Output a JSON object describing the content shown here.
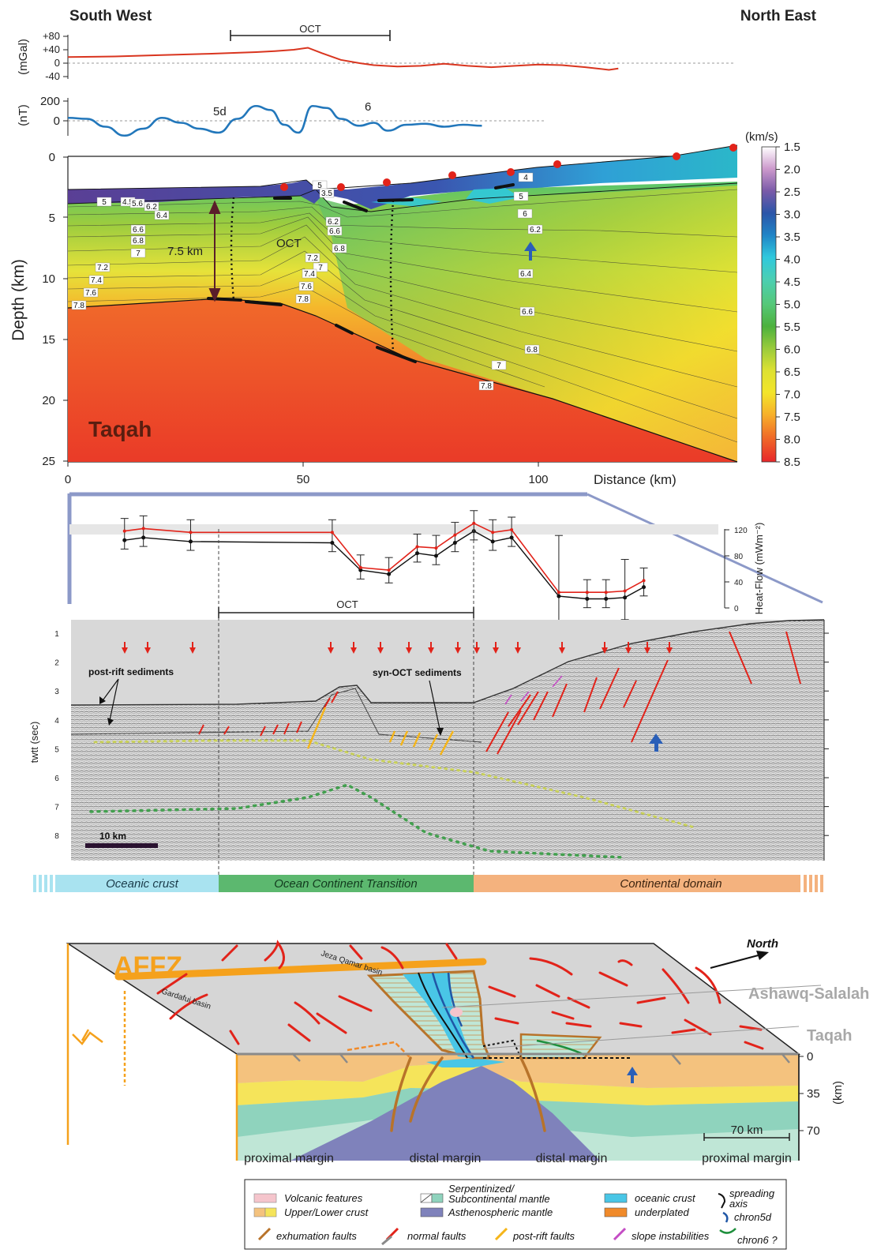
{
  "header": {
    "left": "South West",
    "right": "North East"
  },
  "gravity": {
    "unit": "(mGal)",
    "ticks": [
      "+80",
      "+40",
      "0",
      "-40"
    ],
    "oct_label": "OCT",
    "values": [
      [
        0,
        18
      ],
      [
        10,
        20
      ],
      [
        20,
        24
      ],
      [
        30,
        28
      ],
      [
        40,
        33
      ],
      [
        44,
        36
      ],
      [
        48,
        40
      ],
      [
        51,
        46
      ],
      [
        54,
        30
      ],
      [
        58,
        10
      ],
      [
        62,
        0
      ],
      [
        65,
        -6
      ],
      [
        70,
        -10
      ],
      [
        75,
        -8
      ],
      [
        80,
        -2
      ],
      [
        85,
        -8
      ],
      [
        90,
        -12
      ],
      [
        95,
        -8
      ],
      [
        100,
        -4
      ],
      [
        105,
        -6
      ],
      [
        110,
        -12
      ],
      [
        115,
        -20
      ],
      [
        117,
        -16
      ]
    ]
  },
  "magnetic": {
    "unit": "(nT)",
    "ticks": [
      "200",
      "0"
    ],
    "anomaly_labels": [
      "5d",
      "6"
    ],
    "values": [
      [
        0,
        30
      ],
      [
        4,
        20
      ],
      [
        8,
        -60
      ],
      [
        12,
        -150
      ],
      [
        16,
        -80
      ],
      [
        20,
        30
      ],
      [
        24,
        -20
      ],
      [
        28,
        -80
      ],
      [
        32,
        -120
      ],
      [
        36,
        20
      ],
      [
        40,
        150
      ],
      [
        43,
        110
      ],
      [
        46,
        -40
      ],
      [
        49,
        -120
      ],
      [
        52,
        150
      ],
      [
        55,
        130
      ],
      [
        58,
        20
      ],
      [
        62,
        -50
      ],
      [
        65,
        -20
      ],
      [
        68,
        -100
      ],
      [
        72,
        -40
      ],
      [
        76,
        -30
      ],
      [
        80,
        -60
      ],
      [
        84,
        -40
      ],
      [
        88,
        -50
      ]
    ]
  },
  "velocity_model": {
    "ylabel": "Depth (km)",
    "xlabel": "Distance (km)",
    "yticks": [
      "0",
      "5",
      "10",
      "15",
      "20",
      "25"
    ],
    "xticks": [
      "0",
      "50",
      "100"
    ],
    "ylim": [
      0,
      25
    ],
    "xlim": [
      0,
      143
    ],
    "name": "Taqah",
    "moho_annotation": "7.5 km",
    "oct_label": "OCT",
    "contour_labels": [
      "5",
      "4.5",
      "5.6",
      "6.2",
      "6.4",
      "6.6",
      "6.8",
      "7",
      "7.2",
      "7.4",
      "7.6",
      "7.8",
      "5",
      "3.5",
      "6.2",
      "6.6",
      "6.8",
      "7",
      "7.2",
      "7.4",
      "7.6",
      "7.8",
      "5",
      "6",
      "6.2",
      "6.4",
      "6.6",
      "6.8",
      "7",
      "7.8",
      "4"
    ]
  },
  "colorbar": {
    "unit": "(km/s)",
    "ticks": [
      "1.5",
      "2.0",
      "2.5",
      "3.0",
      "3.5",
      "4.0",
      "4.5",
      "5.0",
      "5.5",
      "6.0",
      "6.5",
      "7.0",
      "7.5",
      "8.0",
      "8.5"
    ],
    "colors": [
      "#ffffff",
      "#cc99cc",
      "#7a5aa8",
      "#2b55a8",
      "#1f84c6",
      "#2fc8dd",
      "#4bcfb3",
      "#55c878",
      "#4cb13d",
      "#7bc340",
      "#c8d63a",
      "#f3e52a",
      "#f7b02a",
      "#f06d28",
      "#e8262a"
    ]
  },
  "heat_flow": {
    "ylabel": "Heat-Flow (mWm⁻²)",
    "yticks": [
      "120",
      "80",
      "40",
      "0"
    ],
    "ylim": [
      0,
      140
    ],
    "red_values": [
      [
        12,
        118
      ],
      [
        16,
        122
      ],
      [
        26,
        116
      ],
      [
        56,
        116
      ],
      [
        62,
        62
      ],
      [
        68,
        58
      ],
      [
        74,
        94
      ],
      [
        78,
        92
      ],
      [
        82,
        112
      ],
      [
        86,
        130
      ],
      [
        90,
        116
      ],
      [
        94,
        120
      ],
      [
        104,
        24
      ],
      [
        110,
        24
      ],
      [
        114,
        24
      ],
      [
        118,
        26
      ],
      [
        122,
        42
      ]
    ],
    "black_values": [
      [
        12,
        104
      ],
      [
        16,
        108
      ],
      [
        26,
        102
      ],
      [
        56,
        100
      ],
      [
        62,
        58
      ],
      [
        68,
        52
      ],
      [
        74,
        84
      ],
      [
        78,
        80
      ],
      [
        82,
        100
      ],
      [
        86,
        118
      ],
      [
        90,
        102
      ],
      [
        94,
        108
      ],
      [
        104,
        18
      ],
      [
        110,
        14
      ],
      [
        114,
        14
      ],
      [
        118,
        16
      ],
      [
        122,
        32
      ]
    ]
  },
  "seismic": {
    "ylabel": "twtt (sec)",
    "yticks": [
      "1",
      "2",
      "3",
      "4",
      "5",
      "6",
      "7",
      "8"
    ],
    "oct_label": "OCT",
    "label_post_rift": "post-rift sediments",
    "label_syn_oct": "syn-OCT sediments",
    "scale_bar": "10 km"
  },
  "domains": {
    "oceanic": "Oceanic crust",
    "oct": "Ocean Continent Transition",
    "continental": "Continental domain"
  },
  "block": {
    "affz": "AFFZ",
    "north": "North",
    "ashawq": "Ashawq-Salalah",
    "taqah": "Taqah",
    "jeza": "Jeza Qamar basin",
    "gardafui": "Gardafui basin",
    "depth_ticks": [
      "0",
      "35",
      "70"
    ],
    "depth_unit": "(km)",
    "scale": "70 km",
    "bottom_labels": [
      "proximal margin",
      "distal margin",
      "distal margin",
      "proximal margin"
    ]
  },
  "legend": {
    "volcanic": "Volcanic features",
    "upper_lower": "Upper/Lower crust",
    "serp_line1": "Serpentinized/",
    "serp_line2": "Subcontinental mantle",
    "astheno": "Asthenospheric mantle",
    "oceanic": "oceanic crust",
    "underplated": "underplated",
    "spreading_line1": "spreading",
    "spreading_line2": "axis",
    "chron5d": "chron5d",
    "chron6": "chron6 ?",
    "exhumation": "exhumation faults",
    "normal": "normal faults",
    "postrift": "post-rift faults",
    "slope": "slope instabilities"
  },
  "colors": {
    "gravity_line": "#d9351f",
    "magnetic_line": "#2277bb",
    "oceanic_band": "#a9e3f0",
    "oct_band": "#5cb86f",
    "continental_band": "#f4b27e",
    "fault": "#e2231a",
    "exhumation_fault": "#b8732a",
    "affz": "#f5a11c"
  }
}
